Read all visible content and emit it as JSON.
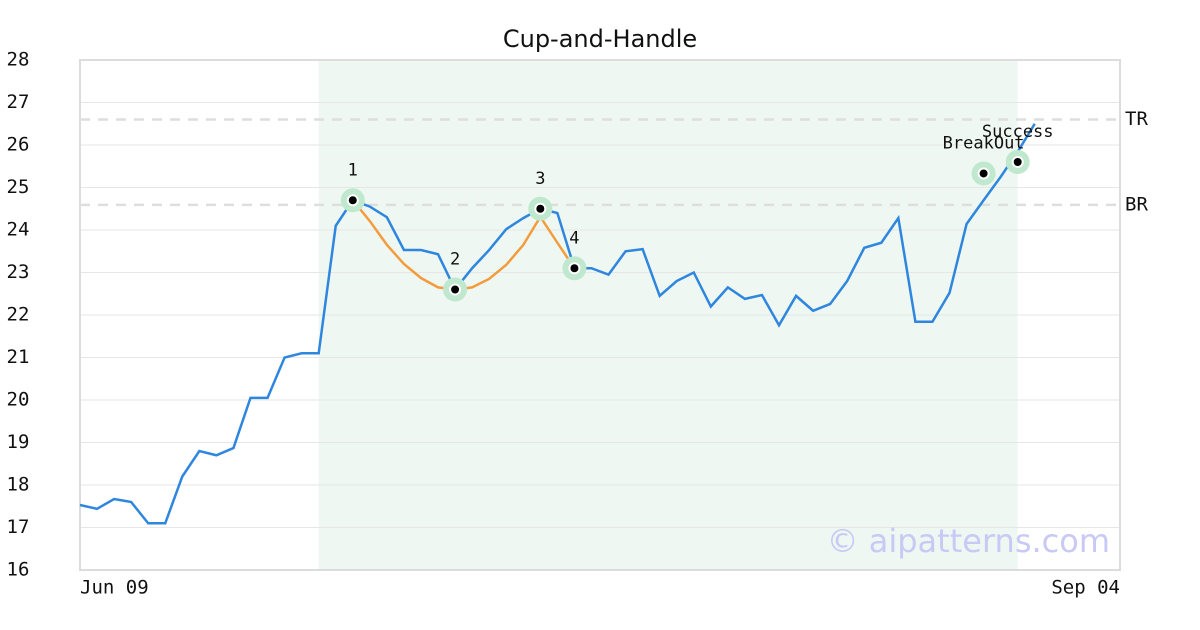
{
  "chart_data": {
    "type": "line",
    "title": "Cup-and-Handle",
    "x": [
      0,
      1,
      2,
      3,
      4,
      5,
      6,
      7,
      8,
      9,
      10,
      11,
      12,
      13,
      14,
      15,
      16,
      17,
      18,
      19,
      20,
      21,
      22,
      23,
      24,
      25,
      26,
      27,
      28,
      29,
      30,
      31,
      32,
      33,
      34,
      35,
      36,
      37,
      38,
      39,
      40,
      41,
      42,
      43,
      44,
      45,
      46,
      47,
      48,
      49,
      50,
      51,
      52,
      53,
      54,
      55,
      56
    ],
    "series": [
      {
        "color": "#2e86de",
        "values": [
          17.53,
          17.44,
          17.67,
          17.6,
          17.1,
          17.1,
          18.2,
          18.8,
          18.7,
          18.87,
          20.05,
          20.05,
          21.0,
          21.1,
          21.1,
          24.1,
          24.7,
          24.55,
          24.3,
          23.53,
          23.53,
          23.43,
          22.6,
          23.1,
          23.53,
          24.02,
          24.28,
          24.5,
          24.4,
          23.1,
          23.1,
          22.95,
          23.5,
          23.55,
          22.45,
          22.8,
          23.0,
          22.2,
          22.65,
          22.38,
          22.47,
          21.76,
          22.45,
          22.1,
          22.26,
          22.8,
          23.58,
          23.7,
          24.28,
          21.84,
          21.84,
          22.52,
          24.14,
          24.7,
          25.25,
          25.84,
          26.5
        ]
      }
    ],
    "cup": {
      "color": "#f39c3c",
      "x": [
        16,
        17,
        18,
        19,
        20,
        21,
        22,
        23,
        24,
        25,
        26,
        27,
        28,
        29
      ],
      "values": [
        24.7,
        24.21,
        23.65,
        23.2,
        22.87,
        22.65,
        22.6,
        22.65,
        22.85,
        23.18,
        23.65,
        24.31,
        23.7,
        23.1
      ]
    },
    "pattern_points": {
      "labels": [
        "1",
        "2",
        "3",
        "4"
      ],
      "x": [
        16,
        22,
        27,
        29
      ],
      "values": [
        24.7,
        22.6,
        24.5,
        23.1
      ]
    },
    "markers": {
      "labels": [
        "BreakOut",
        "Success"
      ],
      "x": [
        53,
        55
      ],
      "values": [
        25.33,
        25.6
      ]
    },
    "levels": [
      {
        "label": "TR",
        "value": 26.6
      },
      {
        "label": "BR",
        "value": 24.59
      }
    ],
    "highlight_span": [
      14,
      55
    ],
    "watermark": "© aipatterns.com",
    "xlim": [
      0,
      61
    ],
    "xticks": [
      {
        "value": 0,
        "label": "Jun 09"
      },
      {
        "value": 61,
        "label": "Sep 04"
      }
    ],
    "ylim": [
      16,
      28
    ],
    "yticks": [
      16,
      17,
      18,
      19,
      20,
      21,
      22,
      23,
      24,
      25,
      26,
      27,
      28
    ],
    "grid": true
  }
}
